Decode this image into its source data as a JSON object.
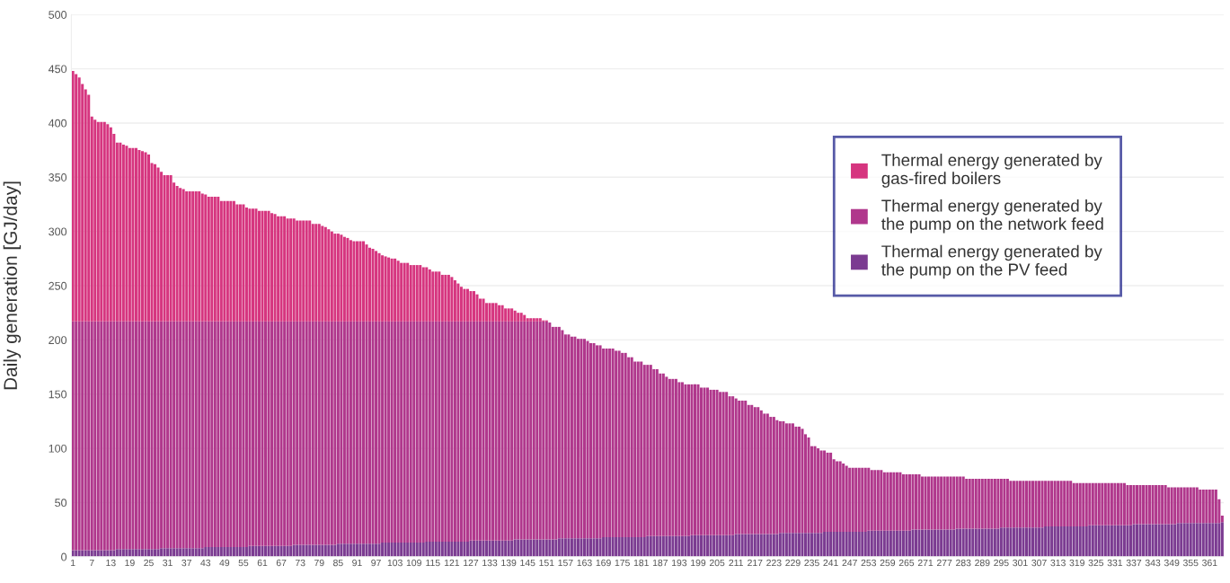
{
  "chart_data": {
    "type": "bar",
    "stacked": true,
    "ylabel": "Daily generation [GJ/day]",
    "ylim": [
      0,
      500
    ],
    "yticks": [
      0,
      50,
      100,
      150,
      200,
      250,
      300,
      350,
      400,
      450,
      500
    ],
    "grid": "y",
    "legend": "top right",
    "categories": [
      "1",
      null,
      null,
      null,
      null,
      null,
      "7",
      null,
      null,
      null,
      null,
      null,
      "13",
      null,
      null,
      null,
      null,
      null,
      "19",
      null,
      null,
      null,
      null,
      null,
      "25",
      null,
      null,
      null,
      null,
      null,
      "31",
      null,
      null,
      null,
      null,
      null,
      "37",
      null,
      null,
      null,
      null,
      null,
      "43",
      null,
      null,
      null,
      null,
      null,
      "49",
      null,
      null,
      null,
      null,
      null,
      "55",
      null,
      null,
      null,
      null,
      null,
      "61",
      null,
      null,
      null,
      null,
      null,
      "67",
      null,
      null,
      null,
      null,
      null,
      "73",
      null,
      null,
      null,
      null,
      null,
      "79",
      null,
      null,
      null,
      null,
      null,
      "85",
      null,
      null,
      null,
      null,
      null,
      "91",
      null,
      null,
      null,
      null,
      null,
      "97",
      null,
      null,
      null,
      null,
      null,
      "103",
      null,
      null,
      null,
      null,
      null,
      "109",
      null,
      null,
      null,
      null,
      null,
      "115",
      null,
      null,
      null,
      null,
      null,
      "121",
      null,
      null,
      null,
      null,
      null,
      "127",
      null,
      null,
      null,
      null,
      null,
      "133",
      null,
      null,
      null,
      null,
      null,
      "139",
      null,
      null,
      null,
      null,
      null,
      "145",
      null,
      null,
      null,
      null,
      null,
      "151",
      null,
      null,
      null,
      null,
      null,
      "157",
      null,
      null,
      null,
      null,
      null,
      "163",
      null,
      null,
      null,
      null,
      null,
      "169",
      null,
      null,
      null,
      null,
      null,
      "175",
      null,
      null,
      null,
      null,
      null,
      "181",
      null,
      null,
      null,
      null,
      null,
      "187",
      null,
      null,
      null,
      null,
      null,
      "193",
      null,
      null,
      null,
      null,
      null,
      "199",
      null,
      null,
      null,
      null,
      null,
      "205",
      null,
      null,
      null,
      null,
      null,
      "211",
      null,
      null,
      null,
      null,
      null,
      "217",
      null,
      null,
      null,
      null,
      null,
      "223",
      null,
      null,
      null,
      null,
      null,
      "229",
      null,
      null,
      null,
      null,
      null,
      "235",
      null,
      null,
      null,
      null,
      null,
      "241",
      null,
      null,
      null,
      null,
      null,
      "247",
      null,
      null,
      null,
      null,
      null,
      "253",
      null,
      null,
      null,
      null,
      null,
      "259",
      null,
      null,
      null,
      null,
      null,
      "265",
      null,
      null,
      null,
      null,
      null,
      "271",
      null,
      null,
      null,
      null,
      null,
      "277",
      null,
      null,
      null,
      null,
      null,
      "283",
      null,
      null,
      null,
      null,
      null,
      "289",
      null,
      null,
      null,
      null,
      null,
      "295",
      null,
      null,
      null,
      null,
      null,
      "301",
      null,
      null,
      null,
      null,
      null,
      "307",
      null,
      null,
      null,
      null,
      null,
      "313",
      null,
      null,
      null,
      null,
      null,
      "319",
      null,
      null,
      null,
      null,
      null,
      "325",
      null,
      null,
      null,
      null,
      null,
      "331",
      null,
      null,
      null,
      null,
      null,
      "337",
      null,
      null,
      null,
      null,
      null,
      "343",
      null,
      null,
      null,
      null,
      null,
      "349",
      null,
      null,
      null,
      null,
      null,
      "355",
      null,
      null,
      null,
      null,
      null,
      "361",
      null,
      null,
      null,
      null
    ],
    "series": [
      {
        "name": "Thermal energy generated by\nthe pump on the PV feed",
        "color": "#7b3b91",
        "values": [
          6,
          6,
          6,
          6,
          6,
          6,
          6,
          6,
          6,
          6,
          6,
          6,
          6,
          6,
          7,
          7,
          7,
          7,
          7,
          7,
          7,
          7,
          7,
          7,
          7,
          7,
          7,
          7,
          8,
          8,
          8,
          8,
          8,
          8,
          8,
          8,
          8,
          8,
          8,
          8,
          8,
          8,
          9,
          9,
          9,
          9,
          9,
          9,
          9,
          9,
          9,
          9,
          9,
          9,
          9,
          9,
          10,
          10,
          10,
          10,
          10,
          10,
          10,
          10,
          10,
          10,
          10,
          10,
          10,
          10,
          11,
          11,
          11,
          11,
          11,
          11,
          11,
          11,
          11,
          11,
          11,
          11,
          11,
          11,
          12,
          12,
          12,
          12,
          12,
          12,
          12,
          12,
          12,
          12,
          12,
          12,
          12,
          12,
          13,
          13,
          13,
          13,
          13,
          13,
          13,
          13,
          13,
          13,
          13,
          13,
          13,
          13,
          14,
          14,
          14,
          14,
          14,
          14,
          14,
          14,
          14,
          14,
          14,
          14,
          14,
          14,
          15,
          15,
          15,
          15,
          15,
          15,
          15,
          15,
          15,
          15,
          15,
          15,
          15,
          15,
          16,
          16,
          16,
          16,
          16,
          16,
          16,
          16,
          16,
          16,
          16,
          16,
          16,
          16,
          17,
          17,
          17,
          17,
          17,
          17,
          17,
          17,
          17,
          17,
          17,
          17,
          17,
          17,
          18,
          18,
          18,
          18,
          18,
          18,
          18,
          18,
          18,
          18,
          18,
          18,
          18,
          18,
          19,
          19,
          19,
          19,
          19,
          19,
          19,
          19,
          19,
          19,
          19,
          19,
          19,
          19,
          20,
          20,
          20,
          20,
          20,
          20,
          20,
          20,
          20,
          20,
          20,
          20,
          20,
          20,
          21,
          21,
          21,
          21,
          21,
          21,
          21,
          21,
          21,
          21,
          21,
          21,
          21,
          21,
          22,
          22,
          22,
          22,
          22,
          22,
          22,
          22,
          22,
          22,
          22,
          22,
          22,
          22,
          23,
          23,
          23,
          23,
          23,
          23,
          23,
          23,
          23,
          23,
          23,
          23,
          23,
          23,
          24,
          24,
          24,
          24,
          24,
          24,
          24,
          24,
          24,
          24,
          24,
          24,
          24,
          24,
          25,
          25,
          25,
          25,
          25,
          25,
          25,
          25,
          25,
          25,
          25,
          25,
          25,
          25,
          26,
          26,
          26,
          26,
          26,
          26,
          26,
          26,
          26,
          26,
          26,
          26,
          26,
          26,
          27,
          27,
          27,
          27,
          27,
          27,
          27,
          27,
          27,
          27,
          27,
          27,
          27,
          27,
          28,
          28,
          28,
          28,
          28,
          28,
          28,
          28,
          28,
          28,
          28,
          28,
          28,
          28,
          29,
          29,
          29,
          29,
          29,
          29,
          29,
          29,
          29,
          29,
          29,
          29,
          29,
          29,
          30,
          30,
          30,
          30,
          30,
          30,
          30,
          30,
          30,
          30,
          30,
          30,
          30,
          30,
          31,
          31,
          31,
          31,
          31,
          31,
          31,
          31,
          31,
          31,
          31,
          31,
          31,
          31,
          32
        ]
      },
      {
        "name": "Thermal energy generated by\nthe pump on the network feed",
        "color": "#b0378c",
        "values": [
          211,
          211,
          211,
          211,
          211,
          211,
          211,
          211,
          211,
          211,
          211,
          211,
          211,
          211,
          210,
          210,
          210,
          210,
          210,
          210,
          210,
          210,
          210,
          210,
          210,
          210,
          210,
          210,
          209,
          209,
          209,
          209,
          209,
          209,
          209,
          209,
          209,
          209,
          209,
          209,
          209,
          209,
          208,
          208,
          208,
          208,
          208,
          208,
          208,
          208,
          208,
          208,
          208,
          208,
          208,
          208,
          207,
          207,
          207,
          207,
          207,
          207,
          207,
          207,
          207,
          207,
          207,
          207,
          207,
          207,
          206,
          206,
          206,
          206,
          206,
          206,
          206,
          206,
          206,
          206,
          206,
          206,
          206,
          206,
          205,
          205,
          205,
          205,
          205,
          205,
          205,
          205,
          205,
          205,
          205,
          205,
          205,
          205,
          204,
          204,
          204,
          204,
          204,
          204,
          204,
          204,
          204,
          204,
          204,
          204,
          204,
          204,
          203,
          203,
          203,
          203,
          203,
          203,
          203,
          203,
          203,
          203,
          203,
          203,
          203,
          203,
          202,
          202,
          202,
          202,
          202,
          202,
          202,
          202,
          202,
          202,
          202,
          202,
          202,
          202,
          201,
          201,
          201,
          201,
          201,
          201,
          201,
          201,
          201,
          201,
          201,
          200,
          196,
          196,
          195,
          192,
          188,
          188,
          186,
          186,
          184,
          184,
          184,
          182,
          180,
          180,
          178,
          178,
          174,
          174,
          174,
          174,
          172,
          172,
          170,
          170,
          166,
          166,
          162,
          162,
          162,
          159,
          158,
          158,
          154,
          154,
          150,
          150,
          147,
          145,
          145,
          145,
          142,
          142,
          140,
          140,
          139,
          139,
          139,
          136,
          136,
          136,
          134,
          134,
          134,
          132,
          132,
          132,
          128,
          128,
          125,
          123,
          123,
          123,
          119,
          119,
          117,
          117,
          114,
          111,
          111,
          108,
          108,
          105,
          103,
          103,
          101,
          101,
          101,
          98,
          98,
          96,
          91,
          88,
          80,
          80,
          78,
          76,
          75,
          73,
          73,
          67,
          65,
          65,
          63,
          61,
          59,
          59,
          59,
          59,
          59,
          59,
          58,
          56,
          56,
          56,
          56,
          54,
          54,
          54,
          54,
          54,
          54,
          52,
          52,
          52,
          51,
          51,
          51,
          49,
          49,
          49,
          49,
          49,
          49,
          49,
          49,
          49,
          49,
          49,
          48,
          48,
          48,
          46,
          46,
          46,
          46,
          46,
          46,
          46,
          46,
          46,
          46,
          46,
          45,
          45,
          45,
          43,
          43,
          43,
          43,
          43,
          43,
          43,
          43,
          43,
          43,
          43,
          42,
          42,
          42,
          42,
          42,
          42,
          42,
          42,
          42,
          40,
          40,
          40,
          40,
          40,
          39,
          39,
          39,
          39,
          39,
          39,
          39,
          39,
          39,
          39,
          39,
          39,
          37,
          37,
          36,
          36,
          36,
          36,
          36,
          36,
          36,
          36,
          36,
          36,
          36,
          34,
          34,
          34,
          33,
          33,
          33,
          33,
          33,
          33,
          33,
          31,
          31,
          31,
          31,
          31,
          31,
          22,
          6
        ]
      },
      {
        "name": "Thermal energy generated by\ngas-fired boilers",
        "color": "#d6357f",
        "values": [
          231,
          228,
          225,
          219,
          214,
          209,
          189,
          186,
          184,
          184,
          184,
          182,
          179,
          173,
          165,
          165,
          163,
          162,
          160,
          160,
          160,
          158,
          157,
          156,
          154,
          146,
          145,
          142,
          138,
          135,
          135,
          135,
          128,
          125,
          123,
          122,
          120,
          120,
          120,
          120,
          120,
          118,
          117,
          115,
          115,
          115,
          115,
          111,
          111,
          111,
          111,
          111,
          108,
          108,
          108,
          105,
          104,
          104,
          104,
          102,
          102,
          102,
          102,
          100,
          99,
          97,
          97,
          97,
          95,
          95,
          95,
          93,
          93,
          93,
          93,
          93,
          90,
          90,
          90,
          88,
          87,
          85,
          83,
          81,
          81,
          80,
          78,
          77,
          75,
          74,
          74,
          74,
          74,
          71,
          68,
          67,
          65,
          63,
          61,
          60,
          59,
          58,
          58,
          56,
          54,
          54,
          54,
          52,
          52,
          52,
          52,
          50,
          50,
          48,
          46,
          46,
          46,
          43,
          43,
          43,
          41,
          38,
          35,
          32,
          30,
          30,
          28,
          28,
          25,
          21,
          21,
          17,
          17,
          17,
          17,
          15,
          15,
          12,
          12,
          12,
          10,
          8,
          8,
          6,
          3,
          3,
          3,
          3,
          3,
          1,
          1,
          null,
          null,
          null,
          null,
          null,
          null,
          null,
          null,
          null,
          null,
          null,
          null,
          null,
          null,
          null,
          null,
          null,
          null,
          null,
          null,
          null,
          null,
          null,
          null,
          null,
          null,
          null,
          null,
          null,
          null,
          null,
          null,
          null,
          null,
          null,
          null,
          null,
          null,
          null,
          null,
          null,
          null,
          null,
          null,
          null,
          null,
          null,
          null,
          null,
          null,
          null,
          null,
          null,
          null,
          null,
          null,
          null,
          null,
          null,
          null,
          null,
          null,
          null,
          null,
          null,
          null,
          null,
          null,
          null,
          null,
          null,
          null,
          null,
          null,
          null,
          null,
          null,
          null,
          null,
          null,
          null,
          null,
          null,
          null,
          null,
          null,
          null,
          null,
          null,
          null,
          null,
          null,
          null,
          null,
          null,
          null,
          null,
          null,
          null,
          null,
          null,
          null,
          null,
          null,
          null,
          null,
          null,
          null,
          null,
          null,
          null,
          null,
          null,
          null,
          null,
          null,
          null,
          null,
          null,
          null,
          null,
          null,
          null,
          null,
          null,
          null,
          null,
          null,
          null,
          null,
          null,
          null,
          null,
          null,
          null,
          null,
          null,
          null,
          null,
          null,
          null,
          null,
          null,
          null,
          null,
          null,
          null,
          null,
          null,
          null,
          null,
          null,
          null,
          null,
          null,
          null,
          null,
          null,
          null,
          null,
          null,
          null,
          null,
          null,
          null,
          null,
          null,
          null,
          null,
          null,
          null,
          null,
          null,
          null,
          null,
          null,
          null,
          null,
          null,
          null,
          null,
          null,
          null,
          null,
          null,
          null,
          null,
          null,
          null,
          null,
          null,
          null,
          null,
          null,
          null,
          null,
          null,
          null,
          null,
          null,
          null,
          null,
          null,
          null,
          null,
          null,
          null,
          null,
          null,
          null,
          null,
          null,
          null,
          null
        ]
      }
    ]
  }
}
